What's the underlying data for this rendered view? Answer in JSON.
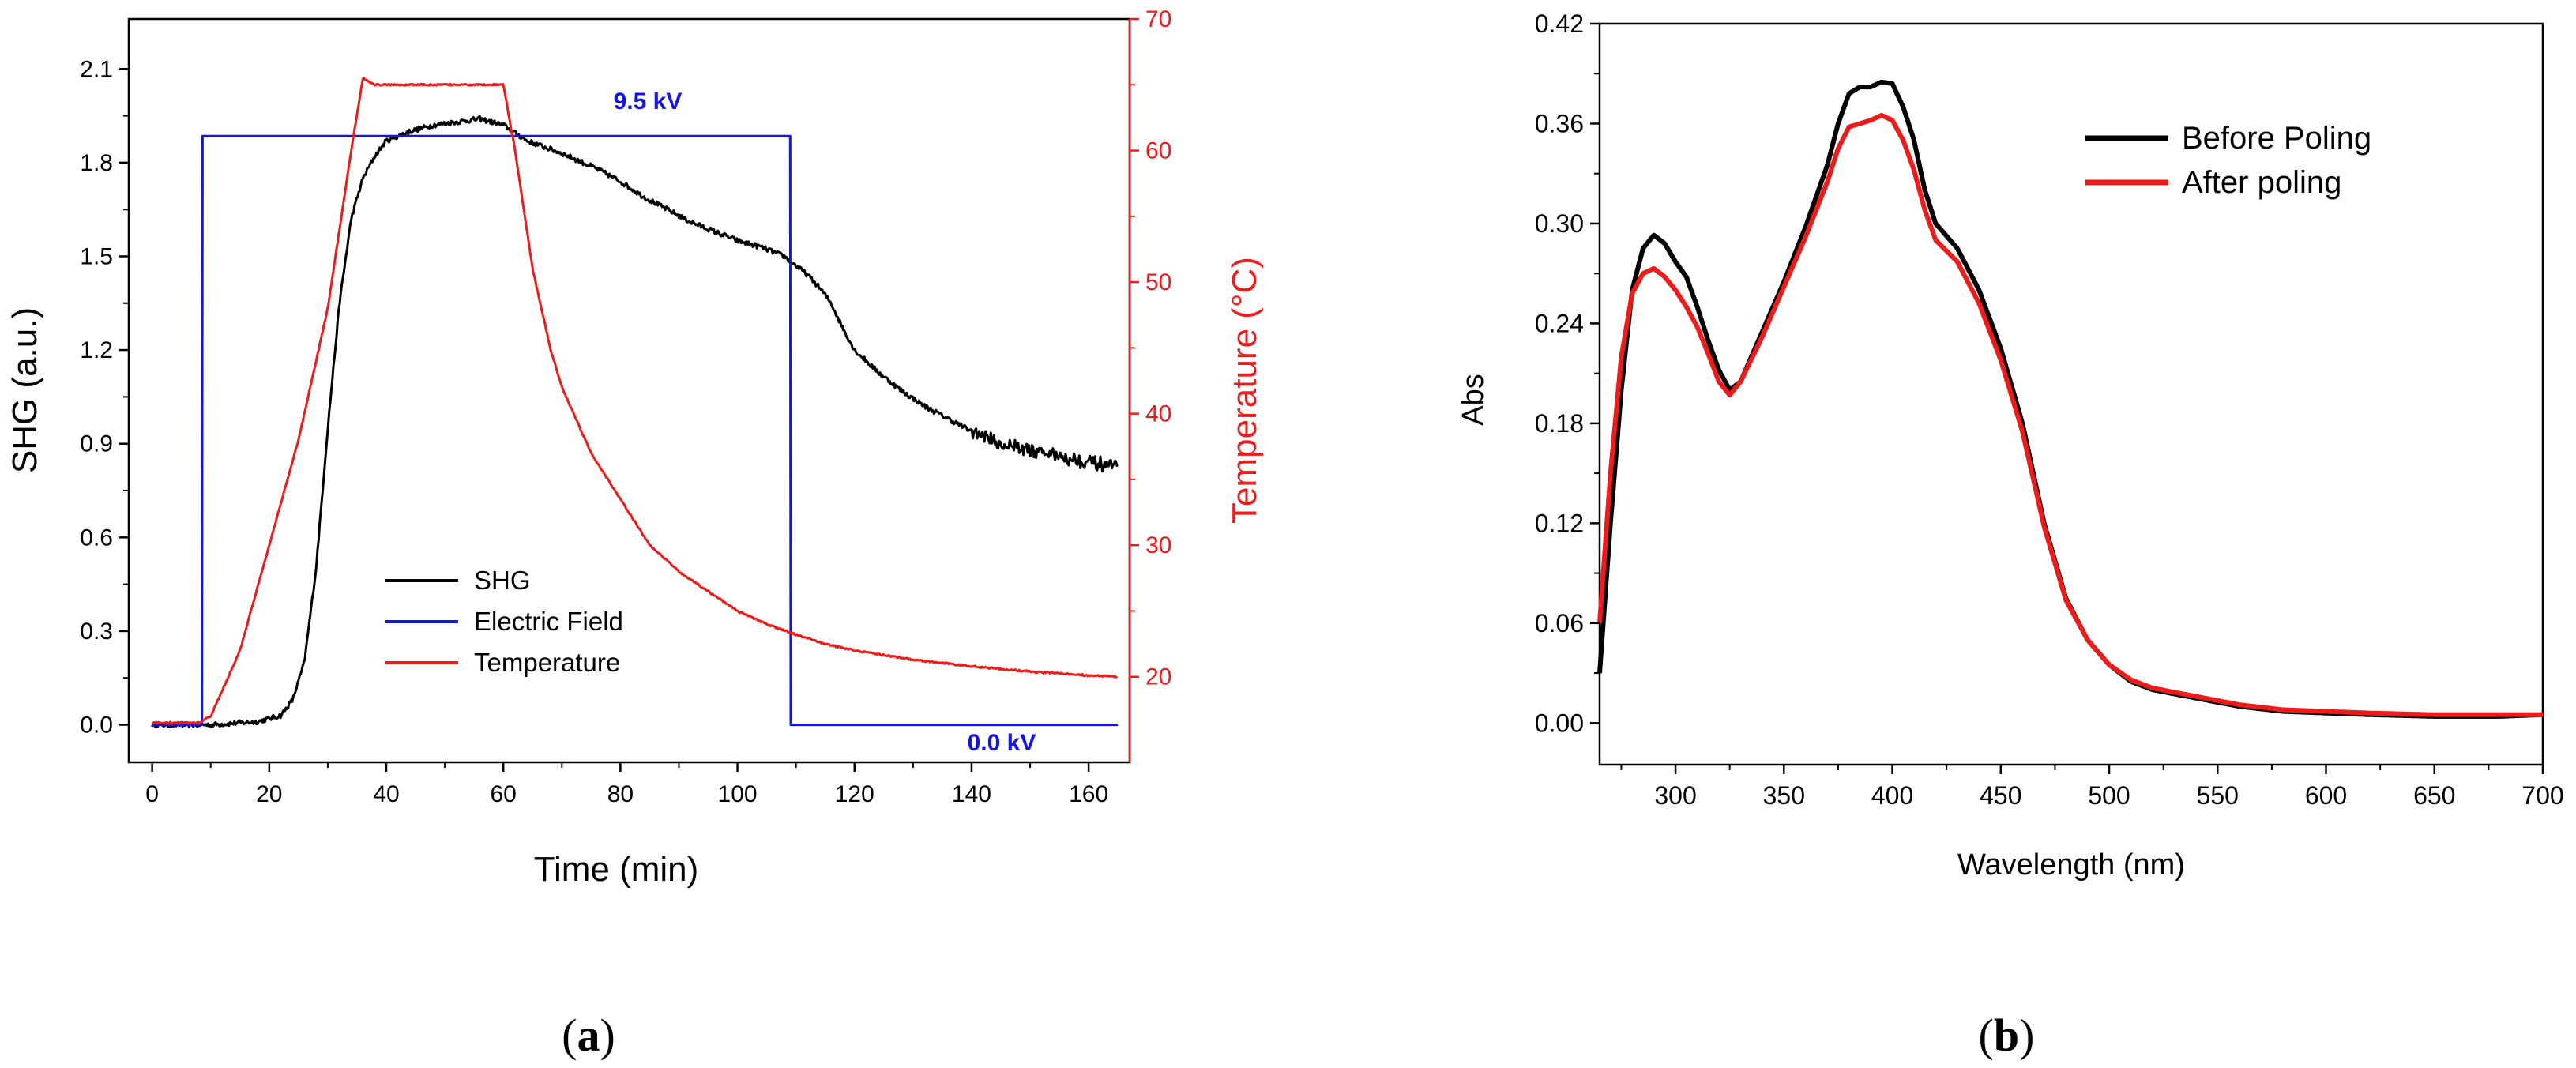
{
  "colors": {
    "black": "#000000",
    "blue": "#1414e6",
    "red": "#ee1b1b"
  },
  "panel_a": {
    "caption": {
      "open": "(",
      "letter": "a",
      "close": ")"
    },
    "annotations": {
      "high_voltage": "9.5 kV",
      "zero_voltage": "0.0 kV"
    }
  },
  "panel_b": {
    "caption": {
      "open": "(",
      "letter": "b",
      "close": ")"
    }
  },
  "chart_data": [
    {
      "type": "line",
      "id": "a",
      "xlabel": "Time (min)",
      "ylabel": "SHG (a.u.)",
      "y2label": "Temperature (°C)",
      "xlim": [
        -4,
        167
      ],
      "ylim": [
        -0.12,
        2.26
      ],
      "y2lim": [
        13.5,
        70
      ],
      "xticks": [
        0,
        20,
        40,
        60,
        80,
        100,
        120,
        140,
        160
      ],
      "yticks": [
        0.0,
        0.3,
        0.6,
        0.9,
        1.2,
        1.5,
        1.8,
        2.1
      ],
      "ytick_labels": [
        "0.0",
        "0.3",
        "0.6",
        "0.9",
        "1.2",
        "1.5",
        "1.8",
        "2.1"
      ],
      "y2ticks": [
        20,
        30,
        40,
        50,
        60,
        70
      ],
      "legend_position": "center",
      "series": [
        {
          "name": "SHG",
          "axis": "left",
          "color": "#000000",
          "noise": 0.008,
          "x": [
            0,
            10,
            18,
            22,
            24,
            26,
            28,
            30,
            32,
            34,
            36,
            38,
            40,
            44,
            48,
            52,
            56,
            60,
            64,
            70,
            76,
            80,
            84,
            88,
            92,
            96,
            100,
            104,
            108,
            110,
            112,
            114,
            116,
            118,
            120,
            124,
            128,
            132,
            136,
            140,
            145,
            150,
            155,
            160,
            165
          ],
          "y": [
            0.0,
            0.0,
            0.01,
            0.03,
            0.08,
            0.2,
            0.5,
            0.95,
            1.35,
            1.62,
            1.75,
            1.82,
            1.87,
            1.9,
            1.92,
            1.93,
            1.94,
            1.92,
            1.87,
            1.83,
            1.78,
            1.74,
            1.69,
            1.65,
            1.61,
            1.58,
            1.55,
            1.53,
            1.5,
            1.47,
            1.44,
            1.4,
            1.35,
            1.27,
            1.2,
            1.13,
            1.07,
            1.02,
            0.98,
            0.94,
            0.9,
            0.88,
            0.86,
            0.84,
            0.82
          ]
        },
        {
          "name": "Electric Field",
          "axis": "left",
          "color": "#1414e6",
          "noise": 0,
          "x": [
            0,
            8.5,
            8.6,
            109,
            109.1,
            165
          ],
          "y": [
            0.0,
            0.0,
            1.885,
            1.885,
            0.0,
            0.0
          ]
        },
        {
          "name": "Temperature",
          "axis": "right",
          "color": "#ee1b1b",
          "noise": 0.06,
          "x": [
            0,
            8,
            10,
            15,
            20,
            25,
            30,
            34,
            36,
            38,
            45,
            50,
            55,
            60,
            62,
            65,
            68,
            70,
            75,
            80,
            85,
            90,
            95,
            100,
            105,
            110,
            115,
            120,
            130,
            140,
            150,
            160,
            165
          ],
          "y": [
            16.5,
            16.5,
            17.0,
            22.0,
            30.0,
            38.0,
            48.0,
            60.0,
            65.5,
            65.0,
            65.0,
            65.0,
            65.0,
            65.0,
            60.0,
            51.0,
            45.0,
            42.0,
            37.0,
            33.5,
            30.0,
            28.0,
            26.5,
            25.0,
            24.0,
            23.2,
            22.5,
            22.0,
            21.3,
            20.8,
            20.4,
            20.1,
            20.0
          ]
        }
      ]
    },
    {
      "type": "line",
      "id": "b",
      "xlabel": "Wavelength (nm)",
      "ylabel": "Abs",
      "xlim": [
        265,
        700
      ],
      "ylim": [
        -0.025,
        0.42
      ],
      "xticks": [
        300,
        350,
        400,
        450,
        500,
        550,
        600,
        650,
        700
      ],
      "yticks": [
        0.0,
        0.06,
        0.12,
        0.18,
        0.24,
        0.3,
        0.36,
        0.42
      ],
      "ytick_labels": [
        "0.00",
        "0.06",
        "0.12",
        "0.18",
        "0.24",
        "0.30",
        "0.36",
        "0.42"
      ],
      "legend_position": "top-right",
      "series": [
        {
          "name": "Before Poling",
          "color": "#000000",
          "x": [
            265,
            270,
            275,
            280,
            285,
            290,
            295,
            300,
            305,
            310,
            315,
            320,
            325,
            330,
            340,
            350,
            360,
            370,
            375,
            380,
            385,
            390,
            395,
            400,
            405,
            410,
            415,
            420,
            430,
            440,
            450,
            460,
            470,
            480,
            490,
            500,
            510,
            520,
            540,
            560,
            580,
            600,
            620,
            650,
            680,
            700
          ],
          "y": [
            0.03,
            0.12,
            0.2,
            0.26,
            0.285,
            0.293,
            0.288,
            0.277,
            0.268,
            0.25,
            0.23,
            0.212,
            0.2,
            0.205,
            0.235,
            0.265,
            0.298,
            0.335,
            0.36,
            0.378,
            0.382,
            0.382,
            0.385,
            0.384,
            0.37,
            0.35,
            0.32,
            0.3,
            0.285,
            0.26,
            0.225,
            0.18,
            0.12,
            0.075,
            0.05,
            0.035,
            0.025,
            0.02,
            0.015,
            0.01,
            0.007,
            0.006,
            0.005,
            0.004,
            0.004,
            0.005
          ]
        },
        {
          "name": "After poling",
          "color": "#ee1b1b",
          "x": [
            265,
            270,
            275,
            280,
            285,
            290,
            295,
            300,
            305,
            310,
            315,
            320,
            325,
            330,
            340,
            350,
            360,
            370,
            375,
            380,
            385,
            390,
            395,
            400,
            405,
            410,
            415,
            420,
            430,
            440,
            450,
            460,
            470,
            480,
            490,
            500,
            510,
            520,
            540,
            560,
            580,
            600,
            620,
            650,
            680,
            700
          ],
          "y": [
            0.06,
            0.15,
            0.22,
            0.258,
            0.27,
            0.273,
            0.268,
            0.26,
            0.25,
            0.238,
            0.222,
            0.205,
            0.197,
            0.205,
            0.232,
            0.262,
            0.292,
            0.325,
            0.345,
            0.358,
            0.36,
            0.362,
            0.365,
            0.362,
            0.35,
            0.332,
            0.308,
            0.29,
            0.277,
            0.252,
            0.218,
            0.175,
            0.118,
            0.074,
            0.05,
            0.035,
            0.026,
            0.021,
            0.016,
            0.011,
            0.008,
            0.007,
            0.006,
            0.005,
            0.005,
            0.005
          ]
        }
      ]
    }
  ]
}
